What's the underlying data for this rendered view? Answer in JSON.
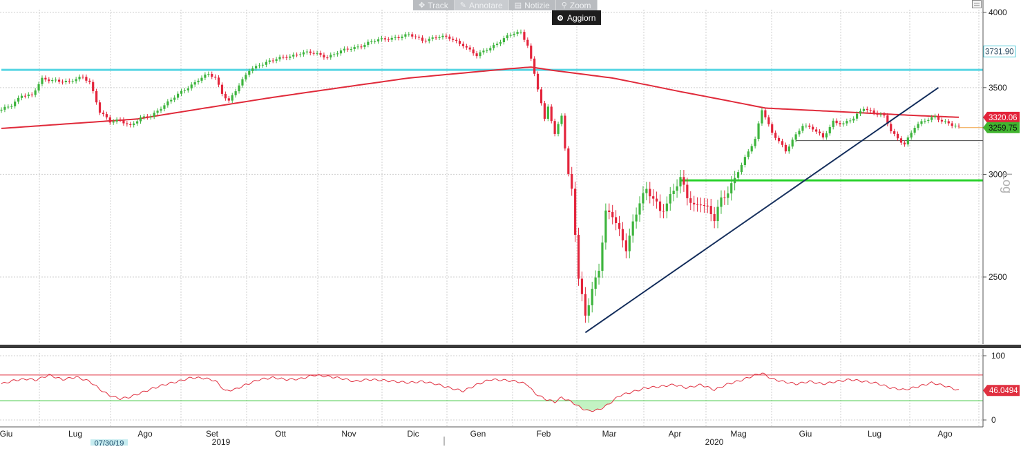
{
  "toolbar": {
    "items": [
      {
        "label": "Track",
        "icon": "crosshair-icon"
      },
      {
        "label": "Annotare",
        "icon": "pencil-icon"
      },
      {
        "label": "Notizie",
        "icon": "news-icon"
      },
      {
        "label": "Zoom",
        "icon": "magnifier-icon"
      }
    ],
    "update_label": "Aggiorn"
  },
  "colors": {
    "up": "#3db43d",
    "down": "#e3243b",
    "ma": "#e02a3a",
    "cyan": "#56d5e3",
    "green_line": "#29d22b",
    "trend": "#142e5c",
    "grid": "#cfcfcf",
    "rsi": "#e03040"
  },
  "chart_data": [
    {
      "type": "candlestick",
      "yscale": "log",
      "ylim": [
        2200,
        4050
      ],
      "ylabel": "Log",
      "yticks": [
        2500,
        3000,
        3500,
        4000
      ],
      "x_months": [
        "Giu",
        "Lug",
        "Ago",
        "Set",
        "Ott",
        "Nov",
        "Dic",
        "Gen",
        "Feb",
        "Mar",
        "Apr",
        "Mag",
        "Giu",
        "Lug",
        "Ago"
      ],
      "years": [
        "2019",
        "2020"
      ],
      "date_tag": "07/30/19",
      "price_badges": [
        {
          "label": "3731.90",
          "value": 3731.9,
          "color": "#4fc8d8"
        },
        {
          "label": "3320.06",
          "value": 3320.06,
          "color": "#e3243b"
        },
        {
          "label": "3259.75",
          "value": 3259.75,
          "color": "#41b52f"
        }
      ],
      "close_path": [
        [
          0,
          3360
        ],
        [
          3,
          3390
        ],
        [
          6,
          3460
        ],
        [
          9,
          3450
        ],
        [
          12,
          3550
        ],
        [
          16,
          3550
        ],
        [
          20,
          3530
        ],
        [
          24,
          3570
        ],
        [
          26,
          3540
        ],
        [
          29,
          3350
        ],
        [
          32,
          3290
        ],
        [
          35,
          3310
        ],
        [
          38,
          3270
        ],
        [
          41,
          3310
        ],
        [
          44,
          3330
        ],
        [
          47,
          3380
        ],
        [
          50,
          3420
        ],
        [
          54,
          3490
        ],
        [
          58,
          3550
        ],
        [
          61,
          3580
        ],
        [
          63,
          3560
        ],
        [
          65,
          3470
        ],
        [
          67,
          3420
        ],
        [
          69,
          3480
        ],
        [
          71,
          3540
        ],
        [
          73,
          3610
        ],
        [
          76,
          3650
        ],
        [
          80,
          3670
        ],
        [
          84,
          3700
        ],
        [
          88,
          3720
        ],
        [
          92,
          3720
        ],
        [
          96,
          3700
        ],
        [
          100,
          3730
        ],
        [
          104,
          3760
        ],
        [
          108,
          3790
        ],
        [
          112,
          3810
        ],
        [
          116,
          3830
        ],
        [
          120,
          3840
        ],
        [
          124,
          3810
        ],
        [
          128,
          3830
        ],
        [
          132,
          3820
        ],
        [
          136,
          3780
        ],
        [
          140,
          3700
        ],
        [
          144,
          3760
        ],
        [
          148,
          3820
        ],
        [
          151,
          3850
        ],
        [
          153,
          3860
        ],
        [
          155,
          3780
        ],
        [
          157,
          3590
        ],
        [
          159,
          3400
        ],
        [
          160,
          3300
        ],
        [
          161,
          3380
        ],
        [
          163,
          3220
        ],
        [
          165,
          3340
        ],
        [
          166,
          3150
        ],
        [
          167,
          3000
        ],
        [
          168,
          2920
        ],
        [
          170,
          2480
        ],
        [
          171,
          2400
        ],
        [
          172,
          2330
        ],
        [
          174,
          2450
        ],
        [
          176,
          2550
        ],
        [
          178,
          2800
        ],
        [
          180,
          2780
        ],
        [
          182,
          2700
        ],
        [
          184,
          2640
        ],
        [
          186,
          2760
        ],
        [
          188,
          2860
        ],
        [
          190,
          2900
        ],
        [
          192,
          2870
        ],
        [
          194,
          2820
        ],
        [
          196,
          2860
        ],
        [
          198,
          2920
        ],
        [
          200,
          2960
        ],
        [
          202,
          2880
        ],
        [
          204,
          2840
        ],
        [
          206,
          2870
        ],
        [
          208,
          2820
        ],
        [
          210,
          2760
        ],
        [
          212,
          2860
        ],
        [
          214,
          2920
        ],
        [
          216,
          2990
        ],
        [
          218,
          3050
        ],
        [
          220,
          3120
        ],
        [
          222,
          3190
        ],
        [
          224,
          3370
        ],
        [
          225,
          3330
        ],
        [
          227,
          3230
        ],
        [
          229,
          3180
        ],
        [
          231,
          3120
        ],
        [
          233,
          3190
        ],
        [
          236,
          3280
        ],
        [
          239,
          3250
        ],
        [
          242,
          3200
        ],
        [
          245,
          3300
        ],
        [
          248,
          3280
        ],
        [
          251,
          3310
        ],
        [
          254,
          3380
        ],
        [
          257,
          3350
        ],
        [
          260,
          3320
        ],
        [
          262,
          3240
        ],
        [
          264,
          3200
        ],
        [
          266,
          3170
        ],
        [
          269,
          3260
        ],
        [
          272,
          3300
        ],
        [
          275,
          3330
        ],
        [
          277,
          3300
        ],
        [
          280,
          3270
        ],
        [
          282,
          3260
        ]
      ],
      "series": [
        {
          "name": "",
          "kind": "sma",
          "values_path": [
            [
              0,
              3255
            ],
            [
              40,
              3310
            ],
            [
              80,
              3440
            ],
            [
              120,
              3560
            ],
            [
              150,
              3620
            ],
            [
              156,
              3630
            ],
            [
              162,
              3610
            ],
            [
              180,
              3560
            ],
            [
              200,
              3475
            ],
            [
              225,
              3375
            ],
            [
              250,
              3350
            ],
            [
              270,
              3330
            ],
            [
              282,
              3320
            ]
          ]
        }
      ],
      "horizontal_lines": [
        {
          "value": 3612,
          "x_from": 0,
          "x_to": 290,
          "color": "#56d5e3"
        },
        {
          "value": 2968,
          "x_from": 200,
          "x_to": 290,
          "color": "#29d22b"
        },
        {
          "value": 3185,
          "x_from": 234,
          "x_to": 290,
          "color": "#444444"
        }
      ],
      "trendline": {
        "from": [
          172,
          2265
        ],
        "to": [
          276,
          3500
        ]
      }
    },
    {
      "type": "line",
      "ylim": [
        0,
        100
      ],
      "yticks": [
        0,
        100
      ],
      "overbought": 70,
      "oversold": 30,
      "last_label": "46.0494",
      "values_path": [
        [
          0,
          56
        ],
        [
          4,
          62
        ],
        [
          8,
          64
        ],
        [
          10,
          62
        ],
        [
          14,
          70
        ],
        [
          18,
          63
        ],
        [
          22,
          67
        ],
        [
          26,
          60
        ],
        [
          30,
          44
        ],
        [
          32,
          38
        ],
        [
          35,
          33
        ],
        [
          38,
          36
        ],
        [
          41,
          42
        ],
        [
          44,
          48
        ],
        [
          48,
          55
        ],
        [
          52,
          60
        ],
        [
          56,
          66
        ],
        [
          60,
          65
        ],
        [
          63,
          61
        ],
        [
          66,
          45
        ],
        [
          69,
          48
        ],
        [
          72,
          55
        ],
        [
          76,
          63
        ],
        [
          80,
          66
        ],
        [
          84,
          63
        ],
        [
          88,
          64
        ],
        [
          92,
          70
        ],
        [
          96,
          68
        ],
        [
          100,
          65
        ],
        [
          104,
          60
        ],
        [
          108,
          63
        ],
        [
          112,
          62
        ],
        [
          116,
          60
        ],
        [
          120,
          58
        ],
        [
          124,
          60
        ],
        [
          128,
          56
        ],
        [
          132,
          50
        ],
        [
          136,
          45
        ],
        [
          140,
          55
        ],
        [
          144,
          63
        ],
        [
          148,
          62
        ],
        [
          152,
          60
        ],
        [
          155,
          55
        ],
        [
          157,
          42
        ],
        [
          160,
          33
        ],
        [
          163,
          28
        ],
        [
          165,
          35
        ],
        [
          168,
          28
        ],
        [
          171,
          18
        ],
        [
          173,
          14
        ],
        [
          176,
          16
        ],
        [
          179,
          25
        ],
        [
          182,
          38
        ],
        [
          186,
          44
        ],
        [
          190,
          50
        ],
        [
          194,
          52
        ],
        [
          198,
          55
        ],
        [
          202,
          50
        ],
        [
          206,
          55
        ],
        [
          210,
          47
        ],
        [
          214,
          56
        ],
        [
          218,
          62
        ],
        [
          222,
          70
        ],
        [
          224,
          73
        ],
        [
          227,
          64
        ],
        [
          230,
          60
        ],
        [
          234,
          56
        ],
        [
          238,
          60
        ],
        [
          242,
          56
        ],
        [
          246,
          60
        ],
        [
          250,
          63
        ],
        [
          254,
          60
        ],
        [
          258,
          57
        ],
        [
          262,
          50
        ],
        [
          266,
          47
        ],
        [
          270,
          52
        ],
        [
          274,
          58
        ],
        [
          278,
          53
        ],
        [
          282,
          46
        ]
      ]
    }
  ]
}
